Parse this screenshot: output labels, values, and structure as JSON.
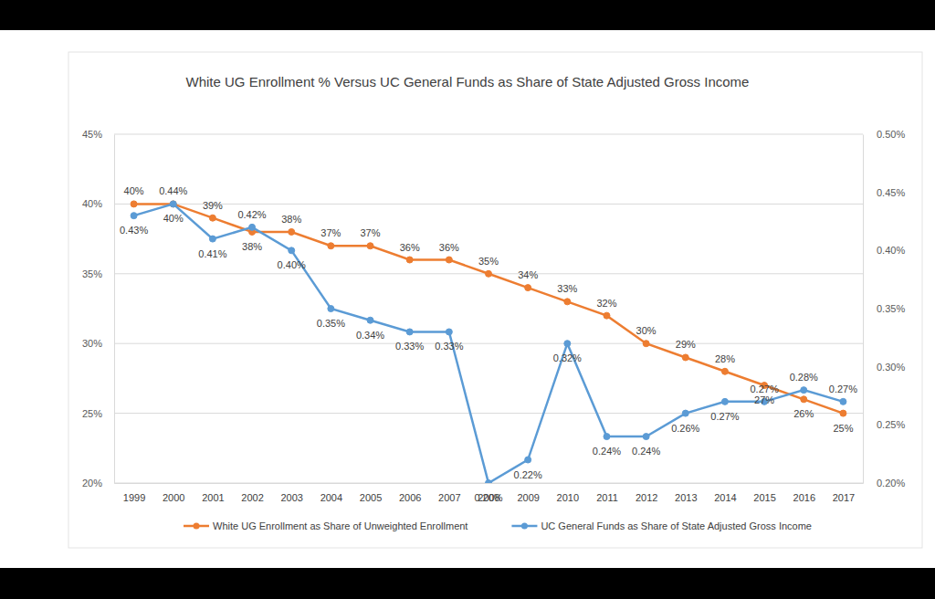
{
  "chart_data": {
    "type": "line",
    "title": "White UG Enrollment % Versus UC General Funds as Share of State Adjusted Gross Income",
    "categories": [
      "1999",
      "2000",
      "2001",
      "2002",
      "2003",
      "2004",
      "2005",
      "2006",
      "2007",
      "2008",
      "2009",
      "2010",
      "2011",
      "2012",
      "2013",
      "2014",
      "2015",
      "2016",
      "2017"
    ],
    "series": [
      {
        "name": "White UG Enrollment as Share of Unweighted Enrollment",
        "color": "#ED7D31",
        "marker": "circle",
        "values": [
          40,
          40,
          39,
          38,
          38,
          37,
          37,
          36,
          36,
          35,
          34,
          33,
          32,
          30,
          29,
          28,
          27,
          26,
          25
        ],
        "value_labels": [
          "40%",
          "40%",
          "39%",
          "38%",
          "38%",
          "37%",
          "37%",
          "36%",
          "36%",
          "35%",
          "34%",
          "33%",
          "32%",
          "30%",
          "29%",
          "28%",
          "27%",
          "26%",
          "25%"
        ]
      },
      {
        "name": "UC General Funds as Share of State Adjusted Gross Income",
        "color": "#5B9BD5",
        "marker": "circle",
        "axis": "y2",
        "values": [
          0.43,
          0.44,
          0.41,
          0.42,
          0.4,
          0.35,
          0.34,
          0.33,
          0.33,
          0.2,
          0.22,
          0.32,
          0.24,
          0.24,
          0.26,
          0.27,
          0.27,
          0.28,
          0.27
        ],
        "value_labels": [
          "0.43%",
          "0.44%",
          "0.41%",
          "0.42%",
          "0.40%",
          "0.35%",
          "0.34%",
          "0.33%",
          "0.33%",
          "0.20%",
          "0.22%",
          "0.32%",
          "0.24%",
          "0.24%",
          "0.26%",
          "0.27%",
          "0.27%",
          "0.28%",
          "0.27%"
        ]
      }
    ],
    "ylim": [
      20,
      45
    ],
    "yticks": [
      {
        "value": 20,
        "label": "20%"
      },
      {
        "value": 25,
        "label": "25%"
      },
      {
        "value": 30,
        "label": "30%"
      },
      {
        "value": 35,
        "label": "35%"
      },
      {
        "value": 40,
        "label": "40%"
      },
      {
        "value": 45,
        "label": "45%"
      }
    ],
    "y2lim": [
      0.2,
      0.5
    ],
    "y2ticks": [
      {
        "value": 0.2,
        "label": "0.20%"
      },
      {
        "value": 0.25,
        "label": "0.25%"
      },
      {
        "value": 0.3,
        "label": "0.30%"
      },
      {
        "value": 0.35,
        "label": "0.35%"
      },
      {
        "value": 0.4,
        "label": "0.40%"
      },
      {
        "value": 0.45,
        "label": "0.45%"
      },
      {
        "value": 0.5,
        "label": "0.50%"
      }
    ],
    "grid": true,
    "legend": "bottom",
    "data_labels": true
  }
}
